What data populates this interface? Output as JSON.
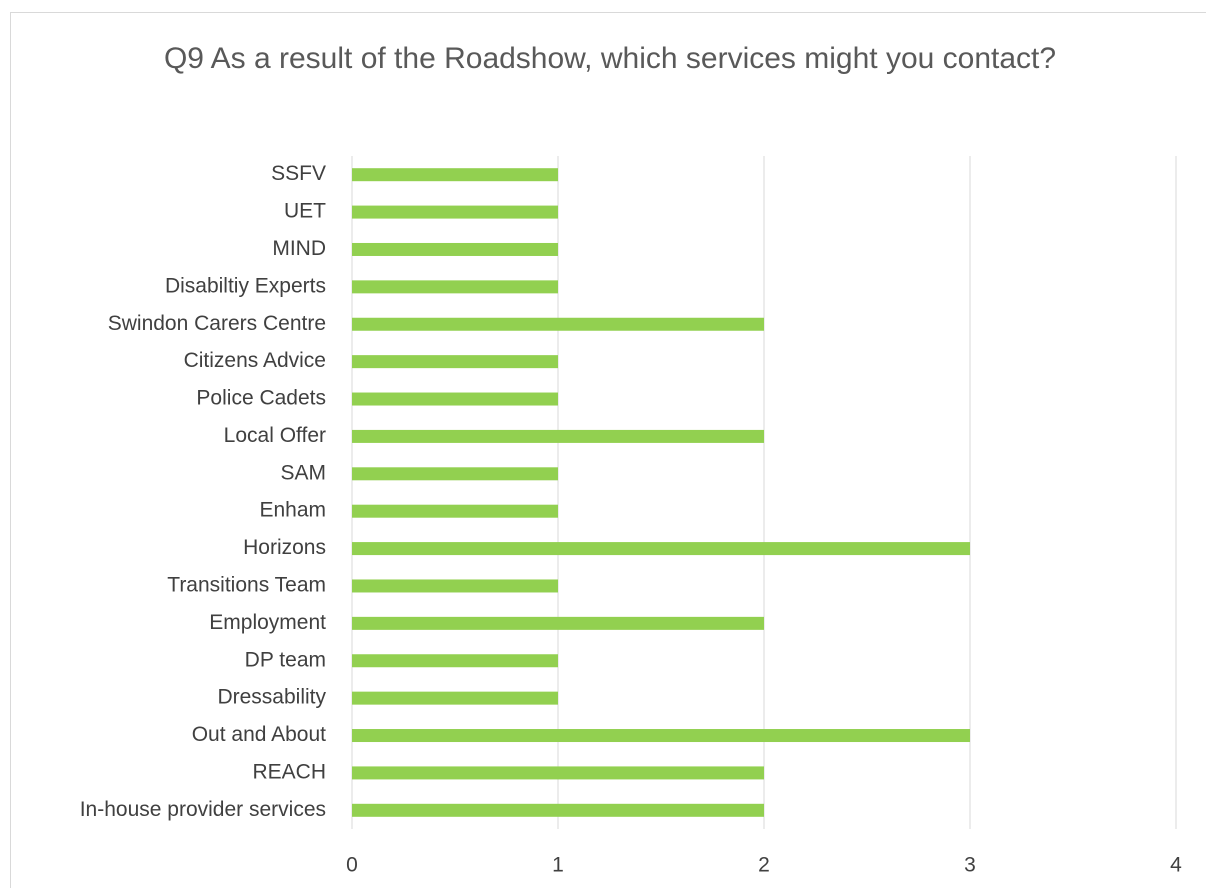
{
  "chart_data": {
    "type": "bar",
    "orientation": "horizontal",
    "title": "Q9 As a result of the Roadshow, which services might you contact?",
    "categories": [
      "SSFV",
      "UET",
      "MIND",
      "Disabiltiy Experts",
      "Swindon Carers Centre",
      "Citizens Advice",
      "Police Cadets",
      "Local Offer",
      "SAM",
      "Enham",
      "Horizons",
      "Transitions Team",
      "Employment",
      "DP team",
      "Dressability",
      "Out and About",
      "REACH",
      "In-house provider services"
    ],
    "values": [
      1,
      1,
      1,
      1,
      2,
      1,
      1,
      2,
      1,
      1,
      3,
      1,
      2,
      1,
      1,
      3,
      2,
      2
    ],
    "color": "#92d050",
    "xlim": [
      0,
      4
    ],
    "xticks": [
      0,
      1,
      2,
      3,
      4
    ],
    "grid": true
  }
}
